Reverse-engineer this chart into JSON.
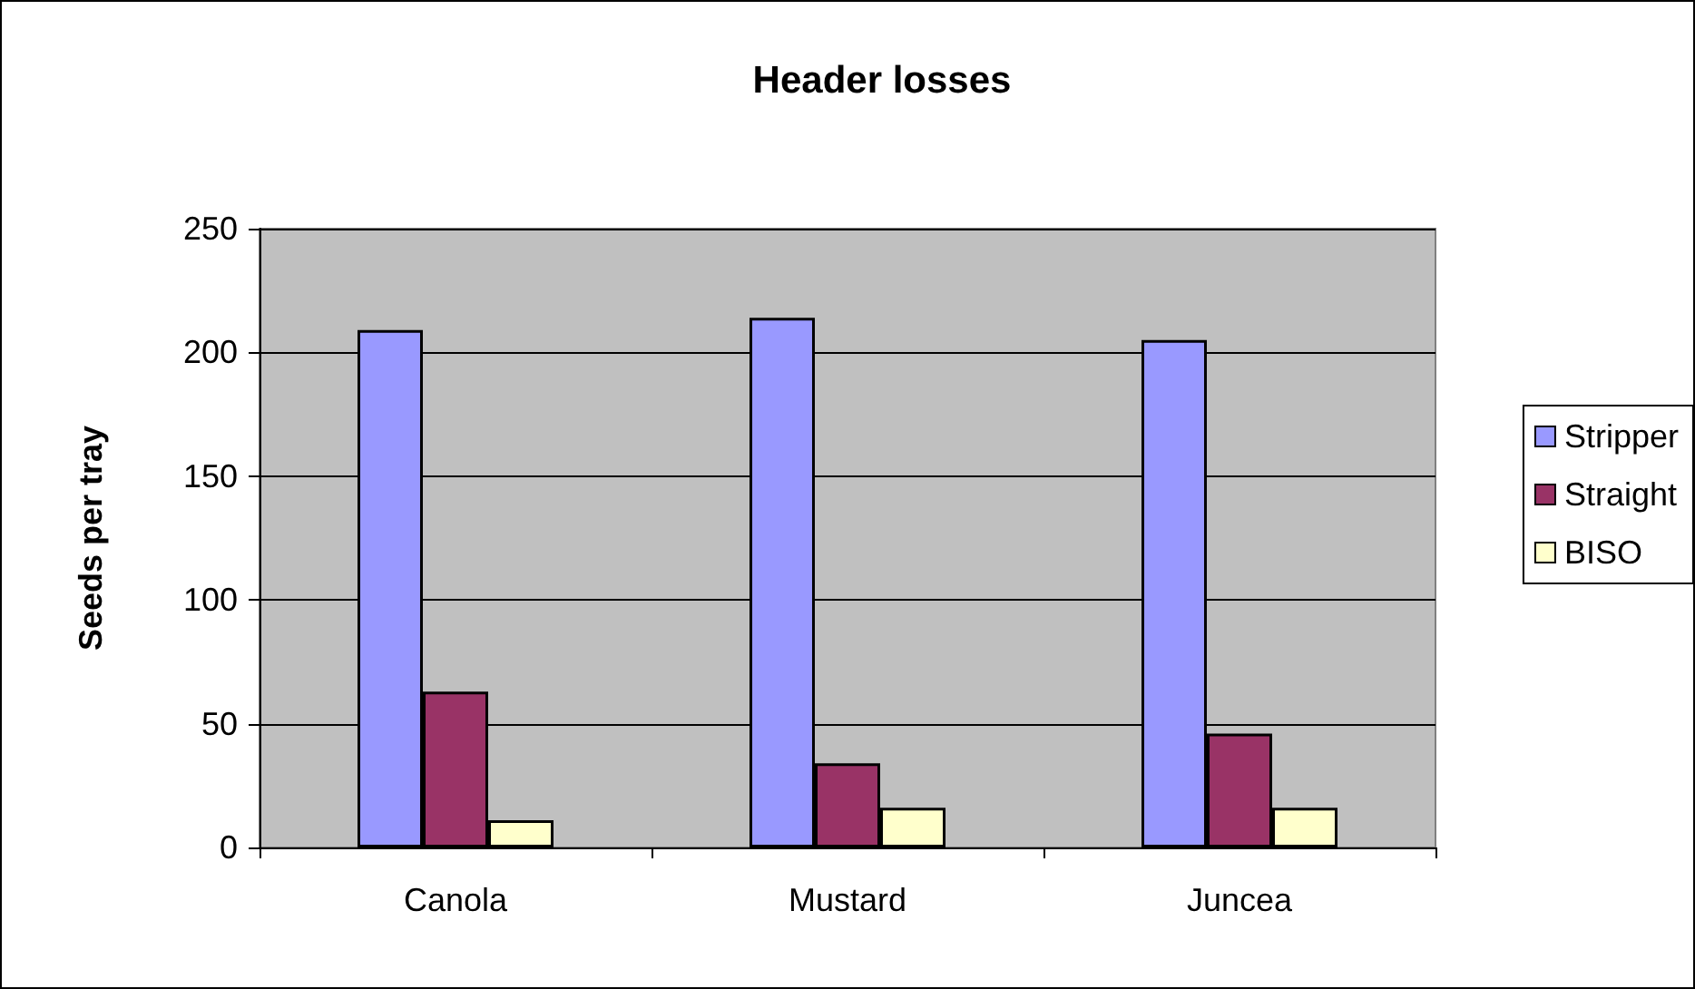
{
  "chart_data": {
    "type": "bar",
    "title": "Header losses",
    "ylabel": "Seeds per tray",
    "categories": [
      "Canola",
      "Mustard",
      "Juncea"
    ],
    "series": [
      {
        "name": "Stripper",
        "color": "#9999ff",
        "values": [
          209,
          214,
          205
        ]
      },
      {
        "name": "Straight",
        "color": "#993366",
        "values": [
          63,
          34,
          46
        ]
      },
      {
        "name": "BISO",
        "color": "#ffffcc",
        "values": [
          11,
          16,
          16
        ]
      }
    ],
    "ylim": [
      0,
      250
    ],
    "yticks": [
      0,
      50,
      100,
      150,
      200,
      250
    ],
    "grid": "y",
    "legend": "right"
  }
}
